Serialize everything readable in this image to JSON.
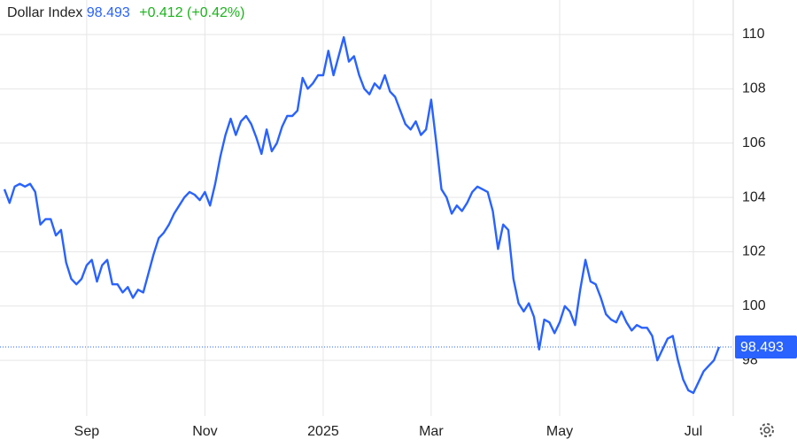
{
  "chart_data": {
    "type": "line",
    "title": "Dollar Index",
    "price": 98.493,
    "change": "+0.412 (+0.42%)",
    "categories": [
      null,
      null,
      null,
      null,
      null,
      null,
      null,
      null,
      null,
      null,
      null,
      null,
      null,
      null,
      null,
      null,
      "Sep",
      null,
      null,
      null,
      null,
      null,
      null,
      null,
      null,
      null,
      null,
      null,
      null,
      null,
      null,
      null,
      null,
      null,
      null,
      null,
      null,
      null,
      null,
      "Nov",
      null,
      null,
      null,
      null,
      null,
      null,
      null,
      null,
      null,
      null,
      null,
      null,
      null,
      null,
      null,
      null,
      null,
      null,
      null,
      null,
      null,
      null,
      "2025",
      null,
      null,
      null,
      null,
      null,
      null,
      null,
      null,
      null,
      null,
      null,
      null,
      null,
      null,
      null,
      null,
      null,
      null,
      null,
      null,
      "Mar",
      null,
      null,
      null,
      null,
      null,
      null,
      null,
      null,
      null,
      null,
      null,
      null,
      null,
      null,
      null,
      null,
      null,
      null,
      null,
      null,
      null,
      null,
      null,
      null,
      "May",
      null,
      null,
      null,
      null,
      null,
      null,
      null,
      null,
      null,
      null,
      null,
      null,
      null,
      null,
      null,
      null,
      null,
      null,
      null,
      null,
      null,
      null,
      null,
      null,
      null,
      "Jul",
      null,
      null,
      null,
      null,
      null
    ],
    "series": [
      {
        "name": "Dollar Index",
        "color": "#2962ff",
        "values": [
          104.3,
          103.8,
          104.4,
          104.5,
          104.4,
          104.5,
          104.2,
          103.0,
          103.2,
          103.2,
          102.6,
          102.8,
          101.6,
          101.0,
          100.8,
          101.0,
          101.5,
          101.7,
          100.9,
          101.5,
          101.7,
          100.8,
          100.8,
          100.5,
          100.7,
          100.3,
          100.6,
          100.5,
          101.2,
          101.9,
          102.5,
          102.7,
          103.0,
          103.4,
          103.7,
          104.0,
          104.2,
          104.1,
          103.9,
          104.2,
          103.7,
          104.5,
          105.5,
          106.3,
          106.9,
          106.3,
          106.8,
          107.0,
          106.7,
          106.2,
          105.6,
          106.5,
          105.7,
          106.0,
          106.6,
          107.0,
          107.0,
          107.2,
          108.4,
          108.0,
          108.2,
          108.5,
          108.5,
          109.4,
          108.5,
          109.2,
          109.9,
          109.0,
          109.2,
          108.5,
          108.0,
          107.8,
          108.2,
          108.0,
          108.5,
          107.9,
          107.7,
          107.2,
          106.7,
          106.5,
          106.8,
          106.3,
          106.5,
          107.6,
          106.0,
          104.3,
          104.0,
          103.4,
          103.7,
          103.5,
          103.8,
          104.2,
          104.4,
          104.3,
          104.2,
          103.5,
          102.1,
          103.0,
          102.8,
          101.0,
          100.1,
          99.8,
          100.1,
          99.6,
          98.4,
          99.5,
          99.4,
          99.0,
          99.4,
          100.0,
          99.8,
          99.3,
          100.6,
          101.7,
          100.9,
          100.8,
          100.3,
          99.7,
          99.5,
          99.4,
          99.8,
          99.4,
          99.1,
          99.3,
          99.2,
          99.2,
          98.9,
          98.0,
          98.4,
          98.8,
          98.9,
          98.0,
          97.3,
          96.9,
          96.8,
          97.2,
          97.6,
          97.8,
          98.0,
          98.493
        ]
      }
    ],
    "ylim": [
      95.95,
      111.27
    ],
    "yticks": [
      98,
      100,
      102,
      104,
      106,
      108,
      110
    ],
    "grid": true
  }
}
